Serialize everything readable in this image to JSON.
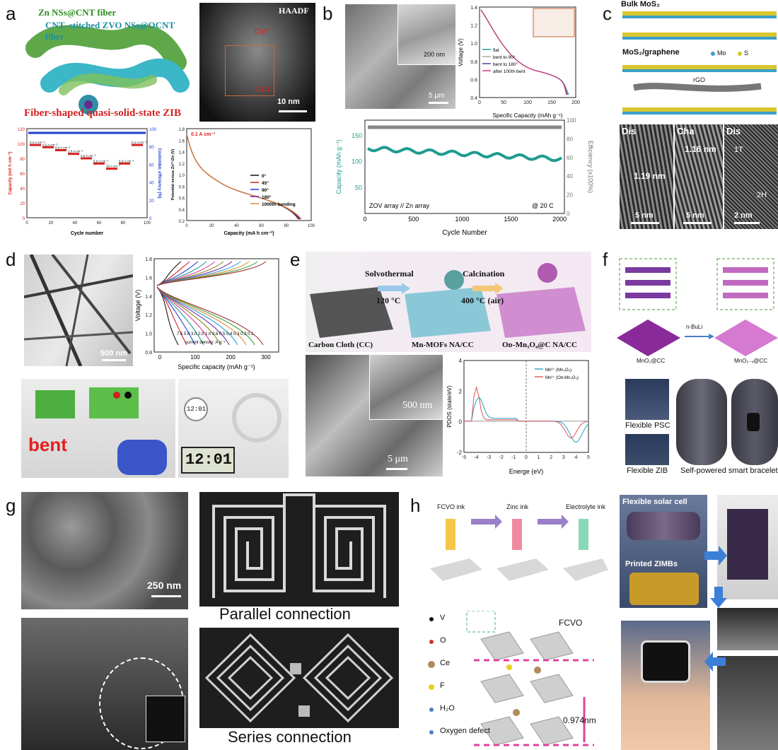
{
  "panels": {
    "a": {
      "label": "a",
      "fiber_label_1": "Zn NSs@CNT fiber",
      "fiber_label_2": "CNT–stitched ZVO NSs@OCNT fiber",
      "caption": "Fiber-shaped quasi-solid-state ZIB",
      "haadf_label": "HAADF",
      "cnt_1": "CNT",
      "cnt_2": "CNT",
      "scale": "10 nm",
      "rate_chart": {
        "xlabel": "Cycle number",
        "ylabel_left": "Capacity (mA h cm⁻³)",
        "ylabel_right": "Coulombic efficiency (%)",
        "xticks": [
          "0",
          "20",
          "40",
          "60",
          "80",
          "100"
        ],
        "yticks_left": [
          "0",
          "20",
          "40",
          "60",
          "80",
          "100",
          "120"
        ],
        "yticks_right": [
          "0",
          "20",
          "40",
          "60",
          "80",
          "100"
        ],
        "rates": [
          "0.1 A cm⁻³",
          "0.2 A cm⁻³",
          "0.5 A cm⁻³",
          "1.0 A cm⁻³",
          "2.0 A cm⁻³",
          "5.0 A cm⁻³",
          "10 A cm⁻³",
          "5.0 A cm⁻³",
          "0.1 A cm⁻³"
        ]
      },
      "bend_chart": {
        "title": "0.1 A cm⁻³",
        "xlabel": "Capacity (mA h cm⁻³)",
        "ylabel": "Potential versus Zn²⁺/Zn (V)",
        "xticks": [
          "0",
          "20",
          "40",
          "60",
          "80",
          "100"
        ],
        "yticks": [
          "0.2",
          "0.4",
          "0.6",
          "0.8",
          "1.0",
          "1.2",
          "1.4",
          "1.6",
          "1.8"
        ],
        "legend": [
          "0°",
          "45°",
          "90°",
          "180°",
          "1000th bending"
        ]
      }
    },
    "b": {
      "label": "b",
      "scale_inset": "200 nm",
      "scale_main": "5 μm",
      "vchart": {
        "xlabel": "Specific Capacity (mAh g⁻¹)",
        "ylabel": "Voltage (V)",
        "xticks": [
          "0",
          "50",
          "100",
          "150",
          "200"
        ],
        "yticks": [
          "0.4",
          "0.6",
          "0.8",
          "1.0",
          "1.2",
          "1.4"
        ],
        "legend": [
          "flat",
          "bent to 90°",
          "bent to 180°",
          "after 100th bent"
        ]
      },
      "cycle_chart": {
        "xlabel": "Cycle Number",
        "ylabel_left": "Capacity (mAh g⁻¹)",
        "ylabel_right": "Efficiency (x100%)",
        "xticks": [
          "0",
          "500",
          "1000",
          "1500",
          "2000"
        ],
        "yticks_left": [
          "50",
          "100",
          "150"
        ],
        "yticks_right": [
          "0",
          "20",
          "40",
          "60",
          "80",
          "100"
        ],
        "annotation_left": "ZOV array // Zn array",
        "annotation_right": "@ 20 C"
      }
    },
    "c": {
      "label": "c",
      "title_bulk": "Bulk MoS₂",
      "title_hybrid": "MoS₂/graphene",
      "legend_mo": "Mo",
      "legend_s": "S",
      "rgo": "rGO",
      "tem": [
        {
          "tag": "Dis",
          "spacing": "1.19 nm",
          "scale": "5 nm"
        },
        {
          "tag": "Cha",
          "spacing": "1.16 nm",
          "scale": "5 nm"
        },
        {
          "tag": "Dis",
          "spacing": "",
          "scale": "2 nm"
        }
      ],
      "phase_1t": "1T",
      "phase_2h": "2H"
    },
    "d": {
      "label": "d",
      "scale": "500 nm",
      "chart": {
        "xlabel": "Specific capacity (mAh g⁻¹)",
        "ylabel": "Voltage (V)",
        "xticks": [
          "0",
          "100",
          "200",
          "300"
        ],
        "yticks": [
          "0.8",
          "1.0",
          "1.2",
          "1.4",
          "1.6",
          "1.8"
        ],
        "currents": "7.5 5.0 3.0 2.0 1.0 0.8 0.5 0.4 0.3 0.2 0.1",
        "current_label": "current density: A g⁻¹"
      },
      "bent": "bent",
      "clock_small": "12:01",
      "clock_big": "12:01"
    },
    "e": {
      "label": "e",
      "step1": "Solvothermal",
      "step1_temp": "120 °C",
      "step2": "Calcination",
      "step2_temp": "400 °C (air)",
      "mat1": "Carbon Cloth (CC)",
      "mat2": "Mn-MOFs NA/CC",
      "mat3": "Oᴅ-Mn₃O₄@C NA/CC",
      "scale_inset": "500 nm",
      "scale_main": "5 μm",
      "chart": {
        "xlabel": "Energe (eV)",
        "ylabel": "PDOS (state/eV)",
        "xticks": [
          "-5",
          "-4",
          "-3",
          "-2",
          "-1",
          "0",
          "1",
          "2",
          "3",
          "4",
          "5"
        ],
        "yticks": [
          "-2",
          "0",
          "2",
          "4"
        ],
        "legend": [
          "Mn²⁺ (Mn₃O₄)",
          "Mn²⁺ (Oᴅ-Mn₃O₄)"
        ]
      }
    },
    "f": {
      "label": "f",
      "reagent": "n-BuLi",
      "left_mat": "MnO₂@CC",
      "right_mat": "MnO₂₋ₓ@CC",
      "psc": "Flexible PSC",
      "zib": "Flexible ZIB",
      "bracelet": "Self-powered smart bracelet"
    },
    "g": {
      "label": "g",
      "scale": "250 nm",
      "parallel": "Parallel connection",
      "series": "Series connection"
    },
    "h": {
      "label": "h",
      "ink1": "FCVO ink",
      "ink2": "Zinc ink",
      "ink3": "Electrolyte ink",
      "structure": "FCVO",
      "legend": [
        "V",
        "O",
        "Ce",
        "F",
        "H₂O",
        "Oxygen defect"
      ],
      "spacing": "0.974nm",
      "solar": "Flexible solar cell",
      "zimbs": "Printed ZIMBs"
    }
  },
  "colors": {
    "red": "#d42020",
    "blue": "#1b3fd1",
    "teal": "#1f9b8f",
    "orange": "#e08a2b",
    "arrow_blue": "#3c7fd8"
  }
}
